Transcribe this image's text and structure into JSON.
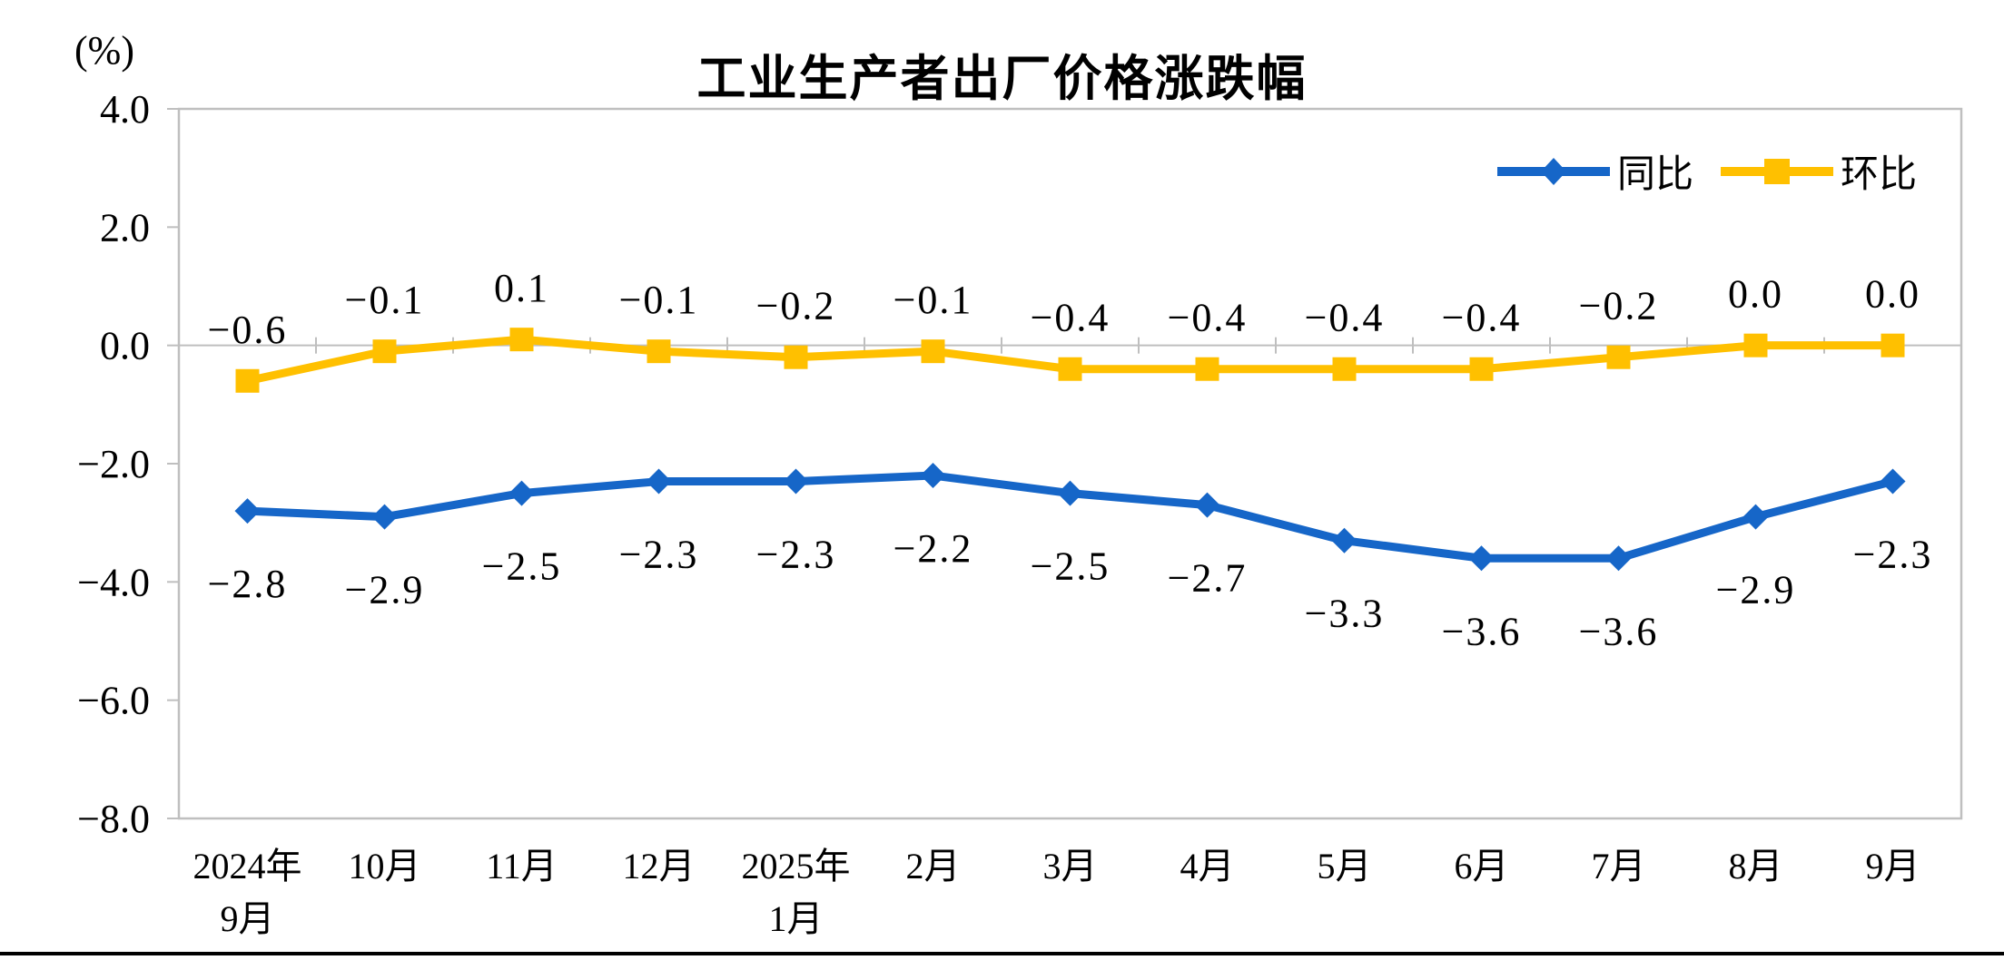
{
  "page": {
    "title": "工业生产者出厂价格涨跌幅",
    "unit_label": "(%)"
  },
  "chart_data": {
    "type": "line",
    "title": "工业生产者出厂价格涨跌幅",
    "ylabel": "(%)",
    "xlabel": "",
    "grid": false,
    "legend_position": "top-right-inside",
    "axis_color": "#BFBFBF",
    "text_color": "#000000",
    "categories": [
      "2024年\n9月",
      "10月",
      "11月",
      "12月",
      "2025年\n1月",
      "2月",
      "3月",
      "4月",
      "5月",
      "6月",
      "7月",
      "8月",
      "9月"
    ],
    "y_axis": {
      "min": -8.0,
      "max": 4.0,
      "tick_interval": 2.0,
      "tick_labels": [
        "4.0",
        "2.0",
        "0.0",
        "−2.0",
        "−4.0",
        "−6.0",
        "−8.0"
      ]
    },
    "series": [
      {
        "name": "同比",
        "color": "#1666C8",
        "marker": "diamond",
        "label_position": "below",
        "values": [
          -2.8,
          -2.9,
          -2.5,
          -2.3,
          -2.3,
          -2.2,
          -2.5,
          -2.7,
          -3.3,
          -3.6,
          -3.6,
          -2.9,
          -2.3
        ],
        "labels": [
          "−2.8",
          "−2.9",
          "−2.5",
          "−2.3",
          "−2.3",
          "−2.2",
          "−2.5",
          "−2.7",
          "−3.3",
          "−3.6",
          "−3.6",
          "−2.9",
          "−2.3"
        ]
      },
      {
        "name": "环比",
        "color": "#FFC000",
        "marker": "square",
        "label_position": "above",
        "values": [
          -0.6,
          -0.1,
          0.1,
          -0.1,
          -0.2,
          -0.1,
          -0.4,
          -0.4,
          -0.4,
          -0.4,
          -0.2,
          0.0,
          0.0
        ],
        "labels": [
          "−0.6",
          "−0.1",
          "0.1",
          "−0.1",
          "−0.2",
          "−0.1",
          "−0.4",
          "−0.4",
          "−0.4",
          "−0.4",
          "−0.2",
          "0.0",
          "0.0"
        ]
      }
    ]
  }
}
